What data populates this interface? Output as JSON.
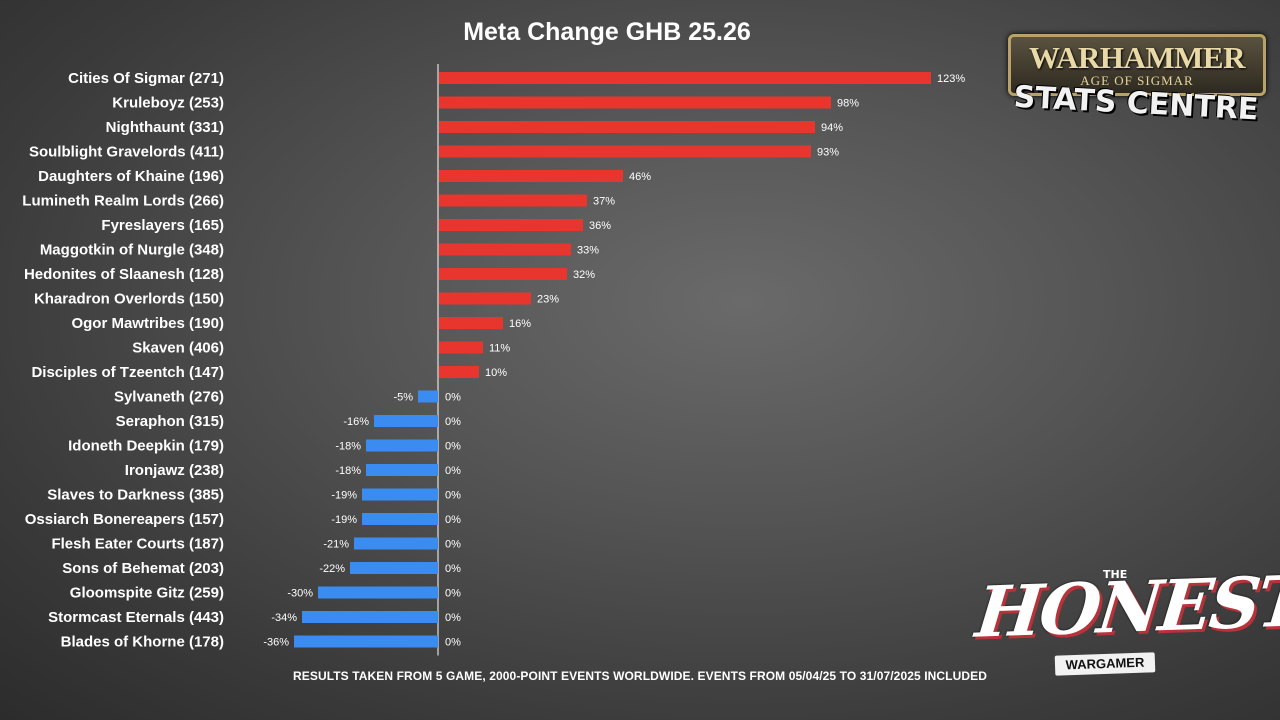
{
  "chart_data": {
    "type": "bar",
    "orientation": "horizontal",
    "title": "Meta Change GHB 25.26",
    "categories": [
      "Cities Of Sigmar (271)",
      "Kruleboyz (253)",
      "Nighthaunt (331)",
      "Soulblight Gravelords (411)",
      "Daughters of Khaine (196)",
      "Lumineth Realm Lords (266)",
      "Fyreslayers (165)",
      "Maggotkin of Nurgle (348)",
      "Hedonites of Slaanesh (128)",
      "Kharadron Overlords (150)",
      "Ogor Mawtribes (190)",
      "Skaven (406)",
      "Disciples of Tzeentch (147)",
      "Sylvaneth (276)",
      "Seraphon (315)",
      "Idoneth Deepkin (179)",
      "Ironjawz (238)",
      "Slaves to Darkness (385)",
      "Ossiarch Bonereapers (157)",
      "Flesh Eater Courts (187)",
      "Sons of Behemat (203)",
      "Gloomspite Gitz (259)",
      "Stormcast Eternals (443)",
      "Blades of Khorne (178)"
    ],
    "series": [
      {
        "values": [
          123,
          98,
          94,
          93,
          46,
          37,
          36,
          33,
          32,
          23,
          16,
          11,
          10,
          0,
          0,
          0,
          0,
          0,
          0,
          0,
          0,
          0,
          0,
          0
        ],
        "color": "#e8352e",
        "labels": [
          "123%",
          "98%",
          "94%",
          "93%",
          "46%",
          "37%",
          "36%",
          "33%",
          "32%",
          "23%",
          "16%",
          "11%",
          "10%",
          "0%",
          "0%",
          "0%",
          "0%",
          "0%",
          "0%",
          "0%",
          "0%",
          "0%",
          "0%",
          "0%"
        ]
      },
      {
        "values": [
          0,
          0,
          0,
          0,
          0,
          0,
          0,
          0,
          0,
          0,
          0,
          0,
          0,
          -5,
          -16,
          -18,
          -18,
          -19,
          -19,
          -21,
          -22,
          -30,
          -34,
          -36
        ],
        "color": "#3b8cf0",
        "labels": [
          "",
          "",
          "",
          "",
          "",
          "",
          "",
          "",
          "",
          "",
          "",
          "",
          "",
          "-5%",
          "-16%",
          "-18%",
          "-18%",
          "-19%",
          "-19%",
          "-21%",
          "-22%",
          "-30%",
          "-34%",
          "-36%"
        ]
      }
    ],
    "xlim": [
      -40,
      130
    ],
    "grid": false,
    "legend": "none"
  },
  "footnote": "RESULTS TAKEN FROM 5 GAME, 2000-POINT EVENTS WORLDWIDE. EVENTS FROM 05/04/25 TO 31/07/2025 INCLUDED",
  "logos": {
    "warhammer": "WARHAMMER",
    "warhammer_sub": "AGE OF SIGMAR",
    "stats_centre": "STATS CENTRE",
    "honest_the": "THE",
    "honest": "HONEST",
    "wargamer": "WARGAMER"
  },
  "colors": {
    "positive": "#e8352e",
    "negative": "#3b8cf0",
    "axis_line": "#ffffff"
  }
}
